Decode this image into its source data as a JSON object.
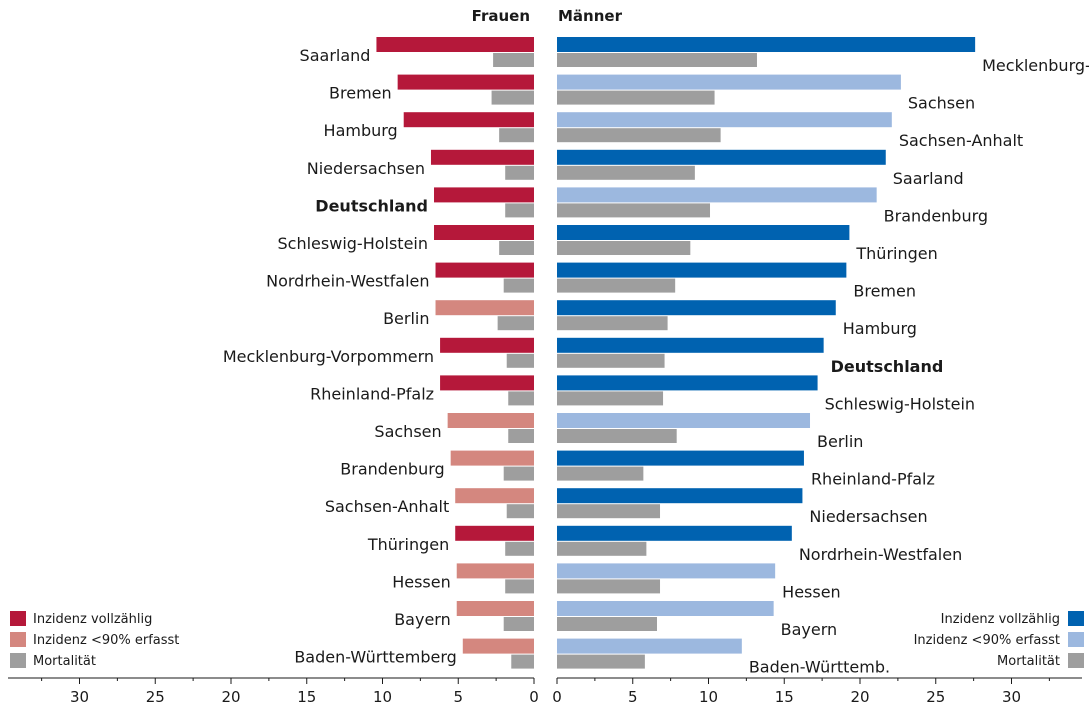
{
  "colors": {
    "women_full": "#b5183a",
    "women_partial": "#d4877f",
    "men_full": "#0062b0",
    "men_partial": "#9cb8df",
    "mortality": "#9e9e9e"
  },
  "legend_left": [
    {
      "key": "full",
      "label": "Inzidenz vollzählig"
    },
    {
      "key": "partial",
      "label": "Inzidenz <90% erfasst"
    },
    {
      "key": "mortality",
      "label": "Mortalität"
    }
  ],
  "legend_right": [
    {
      "key": "full",
      "label": "Inzidenz vollzählig"
    },
    {
      "key": "partial",
      "label": "Inzidenz <90% erfasst"
    },
    {
      "key": "mortality",
      "label": "Mortalität"
    }
  ],
  "chart_data": [
    {
      "type": "bar",
      "orientation": "horizontal-reversed",
      "title": "Frauen",
      "xlim": [
        0,
        35
      ],
      "xticks": [
        30,
        25,
        20,
        15,
        10,
        5,
        0
      ],
      "series": [
        {
          "name": "Inzidenz"
        },
        {
          "name": "Mortalität"
        }
      ],
      "categories": [
        {
          "label": "Saarland",
          "incidence": 10.4,
          "status": "full",
          "mortality": 2.7
        },
        {
          "label": "Bremen",
          "incidence": 9.0,
          "status": "full",
          "mortality": 2.8
        },
        {
          "label": "Hamburg",
          "incidence": 8.6,
          "status": "full",
          "mortality": 2.3
        },
        {
          "label": "Niedersachsen",
          "incidence": 6.8,
          "status": "full",
          "mortality": 1.9
        },
        {
          "label": "Deutschland",
          "incidence": 6.6,
          "status": "full",
          "mortality": 1.9,
          "bold": true
        },
        {
          "label": "Schleswig-Holstein",
          "incidence": 6.6,
          "status": "full",
          "mortality": 2.3
        },
        {
          "label": "Nordrhein-Westfalen",
          "incidence": 6.5,
          "status": "full",
          "mortality": 2.0
        },
        {
          "label": "Berlin",
          "incidence": 6.5,
          "status": "partial",
          "mortality": 2.4
        },
        {
          "label": "Mecklenburg-Vorpommern",
          "incidence": 6.2,
          "status": "full",
          "mortality": 1.8
        },
        {
          "label": "Rheinland-Pfalz",
          "incidence": 6.2,
          "status": "full",
          "mortality": 1.7
        },
        {
          "label": "Sachsen",
          "incidence": 5.7,
          "status": "partial",
          "mortality": 1.7
        },
        {
          "label": "Brandenburg",
          "incidence": 5.5,
          "status": "partial",
          "mortality": 2.0
        },
        {
          "label": "Sachsen-Anhalt",
          "incidence": 5.2,
          "status": "partial",
          "mortality": 1.8
        },
        {
          "label": "Thüringen",
          "incidence": 5.2,
          "status": "full",
          "mortality": 1.9
        },
        {
          "label": "Hessen",
          "incidence": 5.1,
          "status": "partial",
          "mortality": 1.9
        },
        {
          "label": "Bayern",
          "incidence": 5.1,
          "status": "partial",
          "mortality": 2.0
        },
        {
          "label": "Baden-Württemberg",
          "incidence": 4.7,
          "status": "partial",
          "mortality": 1.5
        }
      ]
    },
    {
      "type": "bar",
      "orientation": "horizontal",
      "title": "Männer",
      "xlim": [
        0,
        35
      ],
      "xticks": [
        0,
        5,
        10,
        15,
        20,
        25,
        30
      ],
      "series": [
        {
          "name": "Inzidenz"
        },
        {
          "name": "Mortalität"
        }
      ],
      "categories": [
        {
          "label": "Mecklenburg-Vorp.",
          "incidence": 27.6,
          "status": "full",
          "mortality": 13.2
        },
        {
          "label": "Sachsen",
          "incidence": 22.7,
          "status": "partial",
          "mortality": 10.4
        },
        {
          "label": "Sachsen-Anhalt",
          "incidence": 22.1,
          "status": "partial",
          "mortality": 10.8
        },
        {
          "label": "Saarland",
          "incidence": 21.7,
          "status": "full",
          "mortality": 9.1
        },
        {
          "label": "Brandenburg",
          "incidence": 21.1,
          "status": "partial",
          "mortality": 10.1
        },
        {
          "label": "Thüringen",
          "incidence": 19.3,
          "status": "full",
          "mortality": 8.8
        },
        {
          "label": "Bremen",
          "incidence": 19.1,
          "status": "full",
          "mortality": 7.8
        },
        {
          "label": "Hamburg",
          "incidence": 18.4,
          "status": "full",
          "mortality": 7.3
        },
        {
          "label": "Deutschland",
          "incidence": 17.6,
          "status": "full",
          "mortality": 7.1,
          "bold": true
        },
        {
          "label": "Schleswig-Holstein",
          "incidence": 17.2,
          "status": "full",
          "mortality": 7.0
        },
        {
          "label": "Berlin",
          "incidence": 16.7,
          "status": "partial",
          "mortality": 7.9
        },
        {
          "label": "Rheinland-Pfalz",
          "incidence": 16.3,
          "status": "full",
          "mortality": 5.7
        },
        {
          "label": "Niedersachsen",
          "incidence": 16.2,
          "status": "full",
          "mortality": 6.8
        },
        {
          "label": "Nordrhein-Westfalen",
          "incidence": 15.5,
          "status": "full",
          "mortality": 5.9
        },
        {
          "label": "Hessen",
          "incidence": 14.4,
          "status": "partial",
          "mortality": 6.8
        },
        {
          "label": "Bayern",
          "incidence": 14.3,
          "status": "partial",
          "mortality": 6.6
        },
        {
          "label": "Baden-Württemb.",
          "incidence": 12.2,
          "status": "partial",
          "mortality": 5.8
        }
      ]
    }
  ]
}
